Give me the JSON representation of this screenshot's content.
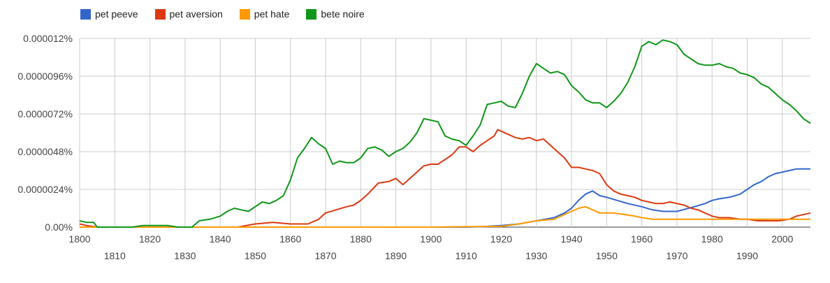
{
  "chart_data": {
    "type": "line",
    "title": "",
    "xlabel": "",
    "ylabel": "",
    "xlim": [
      1800,
      2008
    ],
    "ylim": [
      0,
      1.2e-05
    ],
    "grid": true,
    "legend_position": "top-left",
    "y_ticks": [
      0,
      2.4e-06,
      4.8e-06,
      7.2e-06,
      9.6e-06,
      1.2e-05
    ],
    "y_tick_labels": [
      "0.00%",
      "0.0000024%",
      "0.0000048%",
      "0.0000072%",
      "0.0000096%",
      "0.000012%"
    ],
    "x_ticks_major": [
      1800,
      1820,
      1840,
      1860,
      1880,
      1900,
      1920,
      1940,
      1960,
      1980,
      2000
    ],
    "x_tick_labels_major": [
      "1800",
      "1820",
      "1840",
      "1860",
      "1880",
      "1900",
      "1920",
      "1940",
      "1960",
      "1980",
      "2000"
    ],
    "x_ticks_minor": [
      1810,
      1830,
      1850,
      1870,
      1890,
      1910,
      1930,
      1950,
      1970,
      1990
    ],
    "x_tick_labels_minor": [
      "1810",
      "1830",
      "1850",
      "1870",
      "1890",
      "1910",
      "1930",
      "1950",
      "1970",
      "1990"
    ],
    "series": [
      {
        "name": "pet peeve",
        "color": "#3366cc",
        "points": [
          [
            1800,
            0
          ],
          [
            1910,
            0
          ],
          [
            1915,
            3e-08
          ],
          [
            1920,
            1e-07
          ],
          [
            1925,
            2e-07
          ],
          [
            1930,
            4e-07
          ],
          [
            1935,
            6e-07
          ],
          [
            1938,
            9e-07
          ],
          [
            1940,
            1.2e-06
          ],
          [
            1942,
            1.7e-06
          ],
          [
            1944,
            2.1e-06
          ],
          [
            1946,
            2.3e-06
          ],
          [
            1948,
            2e-06
          ],
          [
            1950,
            1.9e-06
          ],
          [
            1953,
            1.7e-06
          ],
          [
            1956,
            1.5e-06
          ],
          [
            1960,
            1.3e-06
          ],
          [
            1963,
            1.1e-06
          ],
          [
            1966,
            1e-06
          ],
          [
            1970,
            1e-06
          ],
          [
            1975,
            1.3e-06
          ],
          [
            1978,
            1.5e-06
          ],
          [
            1980,
            1.7e-06
          ],
          [
            1982,
            1.8e-06
          ],
          [
            1985,
            1.9e-06
          ],
          [
            1988,
            2.1e-06
          ],
          [
            1990,
            2.4e-06
          ],
          [
            1992,
            2.7e-06
          ],
          [
            1994,
            2.9e-06
          ],
          [
            1996,
            3.2e-06
          ],
          [
            1998,
            3.4e-06
          ],
          [
            2000,
            3.5e-06
          ],
          [
            2002,
            3.6e-06
          ],
          [
            2004,
            3.7e-06
          ],
          [
            2008,
            3.7e-06
          ]
        ]
      },
      {
        "name": "pet aversion",
        "color": "#dc3912",
        "points": [
          [
            1800,
            2e-07
          ],
          [
            1802,
            1e-07
          ],
          [
            1805,
            0
          ],
          [
            1845,
            0
          ],
          [
            1850,
            2e-07
          ],
          [
            1855,
            3e-07
          ],
          [
            1860,
            2e-07
          ],
          [
            1865,
            2e-07
          ],
          [
            1868,
            5e-07
          ],
          [
            1870,
            9e-07
          ],
          [
            1873,
            1.1e-06
          ],
          [
            1876,
            1.3e-06
          ],
          [
            1878,
            1.4e-06
          ],
          [
            1880,
            1.7e-06
          ],
          [
            1882,
            2.1e-06
          ],
          [
            1885,
            2.8e-06
          ],
          [
            1888,
            2.9e-06
          ],
          [
            1890,
            3.1e-06
          ],
          [
            1892,
            2.7e-06
          ],
          [
            1894,
            3.1e-06
          ],
          [
            1896,
            3.5e-06
          ],
          [
            1898,
            3.9e-06
          ],
          [
            1900,
            4e-06
          ],
          [
            1902,
            4e-06
          ],
          [
            1904,
            4.3e-06
          ],
          [
            1906,
            4.6e-06
          ],
          [
            1908,
            5.1e-06
          ],
          [
            1910,
            5.1e-06
          ],
          [
            1912,
            4.8e-06
          ],
          [
            1914,
            5.2e-06
          ],
          [
            1916,
            5.5e-06
          ],
          [
            1918,
            5.8e-06
          ],
          [
            1919,
            6.2e-06
          ],
          [
            1920,
            6.1e-06
          ],
          [
            1922,
            5.9e-06
          ],
          [
            1924,
            5.7e-06
          ],
          [
            1926,
            5.6e-06
          ],
          [
            1928,
            5.7e-06
          ],
          [
            1930,
            5.5e-06
          ],
          [
            1932,
            5.6e-06
          ],
          [
            1934,
            5.2e-06
          ],
          [
            1936,
            4.8e-06
          ],
          [
            1938,
            4.4e-06
          ],
          [
            1940,
            3.8e-06
          ],
          [
            1942,
            3.8e-06
          ],
          [
            1944,
            3.7e-06
          ],
          [
            1946,
            3.6e-06
          ],
          [
            1948,
            3.4e-06
          ],
          [
            1950,
            2.7e-06
          ],
          [
            1952,
            2.3e-06
          ],
          [
            1954,
            2.1e-06
          ],
          [
            1956,
            2e-06
          ],
          [
            1958,
            1.9e-06
          ],
          [
            1960,
            1.7e-06
          ],
          [
            1962,
            1.6e-06
          ],
          [
            1964,
            1.5e-06
          ],
          [
            1966,
            1.5e-06
          ],
          [
            1968,
            1.6e-06
          ],
          [
            1970,
            1.5e-06
          ],
          [
            1972,
            1.4e-06
          ],
          [
            1974,
            1.2e-06
          ],
          [
            1976,
            1.1e-06
          ],
          [
            1978,
            9e-07
          ],
          [
            1980,
            7e-07
          ],
          [
            1982,
            6e-07
          ],
          [
            1985,
            6e-07
          ],
          [
            1988,
            5e-07
          ],
          [
            1990,
            5e-07
          ],
          [
            1993,
            4e-07
          ],
          [
            1996,
            4e-07
          ],
          [
            1999,
            4e-07
          ],
          [
            2002,
            5e-07
          ],
          [
            2004,
            7e-07
          ],
          [
            2008,
            9e-07
          ]
        ]
      },
      {
        "name": "pet hate",
        "color": "#ff9900",
        "points": [
          [
            1800,
            0
          ],
          [
            1900,
            0
          ],
          [
            1920,
            5e-08
          ],
          [
            1925,
            2e-07
          ],
          [
            1930,
            4e-07
          ],
          [
            1935,
            5e-07
          ],
          [
            1938,
            8e-07
          ],
          [
            1940,
            1e-06
          ],
          [
            1942,
            1.2e-06
          ],
          [
            1944,
            1.3e-06
          ],
          [
            1946,
            1.1e-06
          ],
          [
            1948,
            9e-07
          ],
          [
            1950,
            9e-07
          ],
          [
            1952,
            9e-07
          ],
          [
            1955,
            8e-07
          ],
          [
            1958,
            7e-07
          ],
          [
            1960,
            6e-07
          ],
          [
            1963,
            5e-07
          ],
          [
            1966,
            5e-07
          ],
          [
            1970,
            5e-07
          ],
          [
            1975,
            5e-07
          ],
          [
            1980,
            5e-07
          ],
          [
            1985,
            5e-07
          ],
          [
            1990,
            5e-07
          ],
          [
            1995,
            5e-07
          ],
          [
            2000,
            5e-07
          ],
          [
            2008,
            5e-07
          ]
        ]
      },
      {
        "name": "bete noire",
        "color": "#109618",
        "points": [
          [
            1800,
            4e-07
          ],
          [
            1802,
            3e-07
          ],
          [
            1804,
            3e-07
          ],
          [
            1805,
            0
          ],
          [
            1815,
            0
          ],
          [
            1818,
            1e-07
          ],
          [
            1825,
            1e-07
          ],
          [
            1828,
            0
          ],
          [
            1832,
            0
          ],
          [
            1834,
            4e-07
          ],
          [
            1837,
            5e-07
          ],
          [
            1840,
            7e-07
          ],
          [
            1842,
            1e-06
          ],
          [
            1844,
            1.2e-06
          ],
          [
            1846,
            1.1e-06
          ],
          [
            1848,
            1e-06
          ],
          [
            1850,
            1.3e-06
          ],
          [
            1852,
            1.6e-06
          ],
          [
            1854,
            1.5e-06
          ],
          [
            1856,
            1.7e-06
          ],
          [
            1858,
            2e-06
          ],
          [
            1860,
            3e-06
          ],
          [
            1862,
            4.4e-06
          ],
          [
            1864,
            5e-06
          ],
          [
            1866,
            5.7e-06
          ],
          [
            1868,
            5.3e-06
          ],
          [
            1870,
            5e-06
          ],
          [
            1872,
            4e-06
          ],
          [
            1874,
            4.2e-06
          ],
          [
            1876,
            4.1e-06
          ],
          [
            1878,
            4.1e-06
          ],
          [
            1880,
            4.4e-06
          ],
          [
            1882,
            5e-06
          ],
          [
            1884,
            5.1e-06
          ],
          [
            1886,
            4.9e-06
          ],
          [
            1888,
            4.5e-06
          ],
          [
            1890,
            4.8e-06
          ],
          [
            1892,
            5e-06
          ],
          [
            1894,
            5.4e-06
          ],
          [
            1896,
            6e-06
          ],
          [
            1898,
            6.9e-06
          ],
          [
            1900,
            6.8e-06
          ],
          [
            1902,
            6.7e-06
          ],
          [
            1904,
            5.8e-06
          ],
          [
            1906,
            5.6e-06
          ],
          [
            1908,
            5.5e-06
          ],
          [
            1910,
            5.2e-06
          ],
          [
            1912,
            5.8e-06
          ],
          [
            1914,
            6.5e-06
          ],
          [
            1916,
            7.8e-06
          ],
          [
            1918,
            7.9e-06
          ],
          [
            1920,
            8e-06
          ],
          [
            1922,
            7.7e-06
          ],
          [
            1924,
            7.6e-06
          ],
          [
            1926,
            8.5e-06
          ],
          [
            1928,
            9.6e-06
          ],
          [
            1930,
            1.04e-05
          ],
          [
            1932,
            1.01e-05
          ],
          [
            1934,
            9.8e-06
          ],
          [
            1936,
            9.9e-06
          ],
          [
            1938,
            9.7e-06
          ],
          [
            1940,
            9e-06
          ],
          [
            1942,
            8.6e-06
          ],
          [
            1944,
            8.1e-06
          ],
          [
            1946,
            7.9e-06
          ],
          [
            1948,
            7.9e-06
          ],
          [
            1950,
            7.6e-06
          ],
          [
            1952,
            8e-06
          ],
          [
            1954,
            8.5e-06
          ],
          [
            1956,
            9.2e-06
          ],
          [
            1958,
            1.02e-05
          ],
          [
            1960,
            1.15e-05
          ],
          [
            1962,
            1.18e-05
          ],
          [
            1964,
            1.16e-05
          ],
          [
            1966,
            1.19e-05
          ],
          [
            1968,
            1.18e-05
          ],
          [
            1970,
            1.16e-05
          ],
          [
            1972,
            1.1e-05
          ],
          [
            1974,
            1.07e-05
          ],
          [
            1976,
            1.04e-05
          ],
          [
            1978,
            1.03e-05
          ],
          [
            1980,
            1.03e-05
          ],
          [
            1982,
            1.04e-05
          ],
          [
            1984,
            1.02e-05
          ],
          [
            1986,
            1.01e-05
          ],
          [
            1988,
            9.8e-06
          ],
          [
            1990,
            9.7e-06
          ],
          [
            1992,
            9.5e-06
          ],
          [
            1994,
            9.1e-06
          ],
          [
            1996,
            8.9e-06
          ],
          [
            1998,
            8.5e-06
          ],
          [
            2000,
            8.1e-06
          ],
          [
            2002,
            7.8e-06
          ],
          [
            2004,
            7.4e-06
          ],
          [
            2006,
            6.9e-06
          ],
          [
            2008,
            6.6e-06
          ]
        ]
      }
    ]
  }
}
